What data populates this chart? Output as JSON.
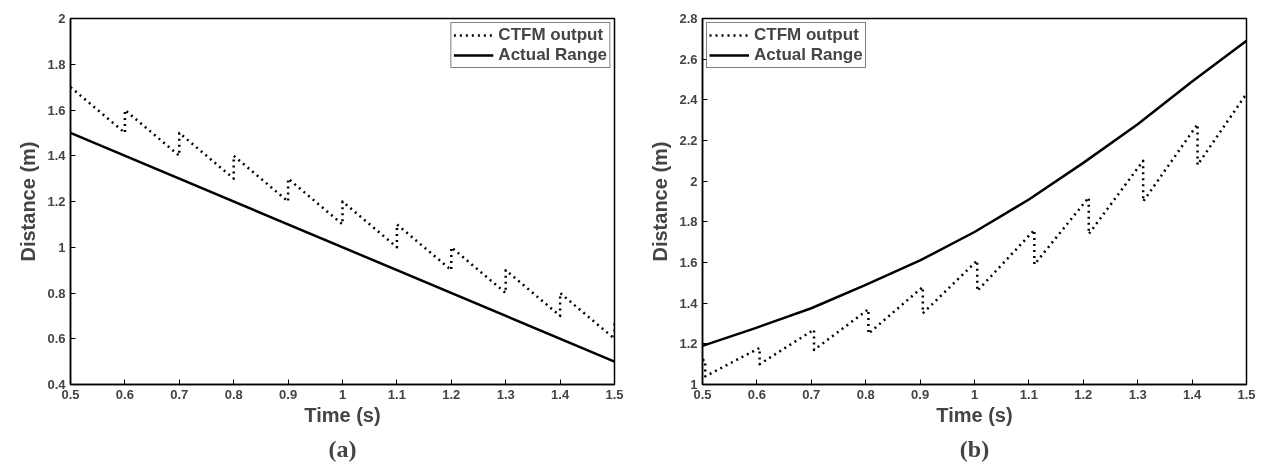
{
  "chart_data": [
    {
      "type": "line",
      "xlabel": "Time (s)",
      "ylabel": "Distance (m)",
      "annotations": [
        "(a)"
      ],
      "xlim": [
        0.5,
        1.5
      ],
      "ylim": [
        0.4,
        2
      ],
      "xticks": [
        0.5,
        0.6,
        0.7,
        0.8,
        0.9,
        1,
        1.1,
        1.2,
        1.3,
        1.4,
        1.5
      ],
      "yticks": [
        0.4,
        0.6,
        0.8,
        1,
        1.2,
        1.4,
        1.6,
        1.8,
        2
      ],
      "grid": false,
      "legend": "top right",
      "series": [
        {
          "name": "CTFM output",
          "color": "#000000",
          "line_style": "dotted",
          "x": [
            0.5,
            0.6,
            0.6,
            0.7,
            0.7,
            0.8,
            0.8,
            0.9,
            0.9,
            1.0,
            1.0,
            1.1,
            1.1,
            1.2,
            1.2,
            1.3,
            1.3,
            1.4,
            1.4,
            1.5,
            1.5
          ],
          "values": [
            1.7,
            1.5,
            1.6,
            1.4,
            1.5,
            1.3,
            1.4,
            1.2,
            1.3,
            1.1,
            1.2,
            1.0,
            1.1,
            0.9,
            1.0,
            0.8,
            0.9,
            0.7,
            0.8,
            0.6,
            0.68
          ]
        },
        {
          "name": "Actual Range",
          "color": "#000000",
          "line_style": "solid",
          "x": [
            0.5,
            1.5
          ],
          "values": [
            1.5,
            0.5
          ]
        }
      ]
    },
    {
      "type": "line",
      "xlabel": "Time (s)",
      "ylabel": "Distance (m)",
      "annotations": [
        "(b)"
      ],
      "xlim": [
        0.5,
        1.5
      ],
      "ylim": [
        1,
        2.8
      ],
      "xticks": [
        0.5,
        0.6,
        0.7,
        0.8,
        0.9,
        1,
        1.1,
        1.2,
        1.3,
        1.4,
        1.5
      ],
      "yticks": [
        1,
        1.2,
        1.4,
        1.6,
        1.8,
        2,
        2.2,
        2.4,
        2.6,
        2.8
      ],
      "grid": false,
      "legend": "top left",
      "series": [
        {
          "name": "CTFM output",
          "color": "#000000",
          "line_style": "dotted",
          "x": [
            0.5,
            0.505,
            0.505,
            0.605,
            0.605,
            0.705,
            0.705,
            0.805,
            0.805,
            0.905,
            0.905,
            1.005,
            1.005,
            1.11,
            1.11,
            1.21,
            1.21,
            1.31,
            1.31,
            1.41,
            1.41,
            1.5
          ],
          "values": [
            1.12,
            1.12,
            1.04,
            1.18,
            1.1,
            1.27,
            1.17,
            1.37,
            1.25,
            1.48,
            1.35,
            1.61,
            1.46,
            1.76,
            1.59,
            1.92,
            1.74,
            2.1,
            1.9,
            2.28,
            2.08,
            2.43
          ]
        },
        {
          "name": "Actual Range",
          "color": "#000000",
          "line_style": "solid",
          "x": [
            0.5,
            0.6,
            0.7,
            0.8,
            0.9,
            1.0,
            1.1,
            1.2,
            1.3,
            1.4,
            1.5
          ],
          "values": [
            1.19,
            1.28,
            1.375,
            1.49,
            1.61,
            1.75,
            1.91,
            2.09,
            2.28,
            2.49,
            2.69
          ]
        }
      ]
    }
  ]
}
